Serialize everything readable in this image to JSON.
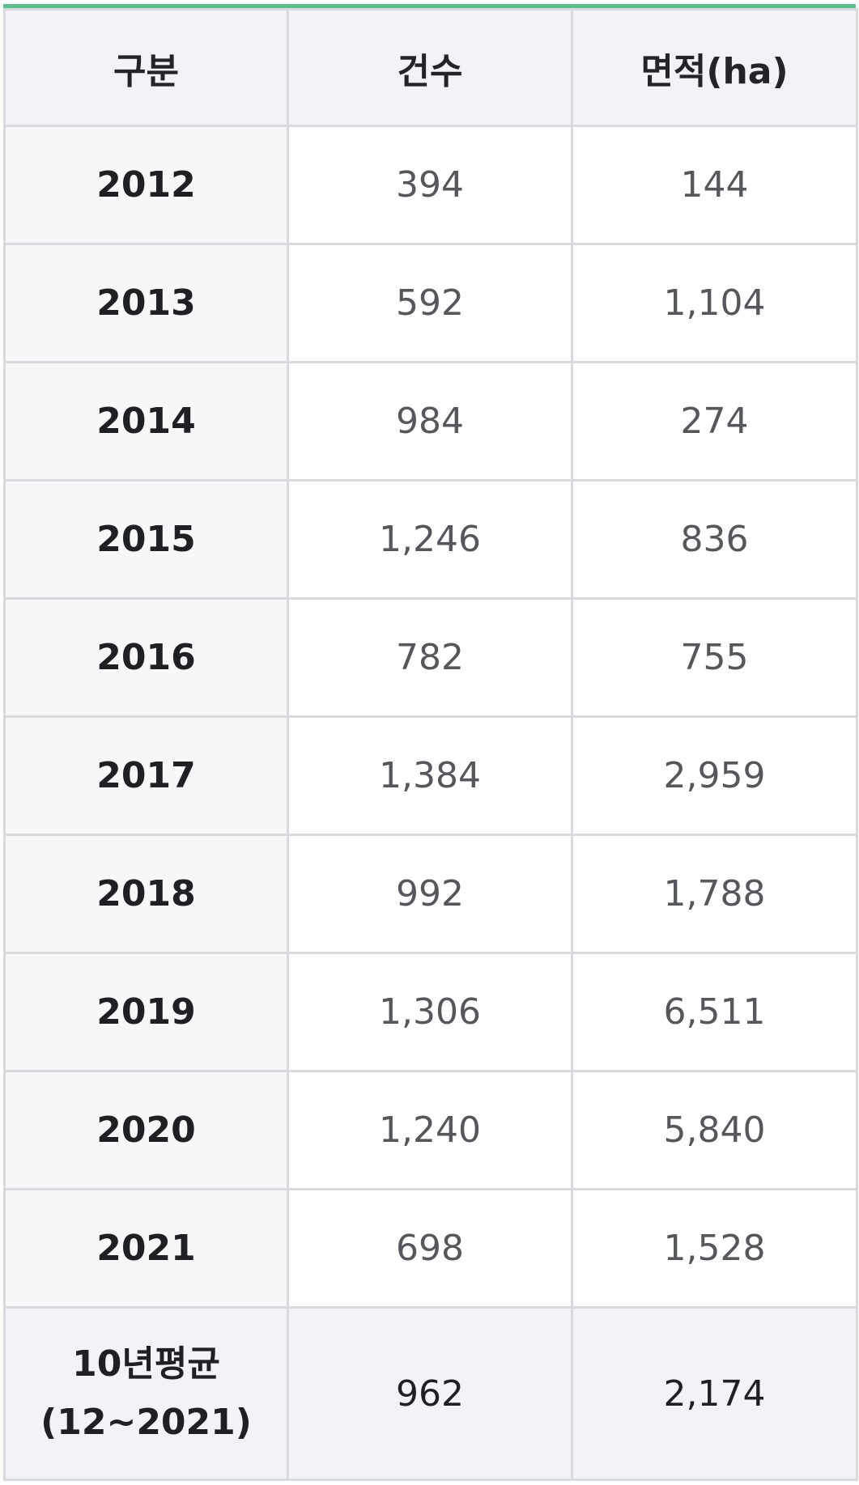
{
  "table": {
    "headers": [
      "구분",
      "건수",
      "면적(ha)"
    ],
    "rows": [
      {
        "year": "2012",
        "count": "394",
        "area": "144"
      },
      {
        "year": "2013",
        "count": "592",
        "area": "1,104"
      },
      {
        "year": "2014",
        "count": "984",
        "area": "274"
      },
      {
        "year": "2015",
        "count": "1,246",
        "area": "836"
      },
      {
        "year": "2016",
        "count": "782",
        "area": "755"
      },
      {
        "year": "2017",
        "count": "1,384",
        "area": "2,959"
      },
      {
        "year": "2018",
        "count": "992",
        "area": "1,788"
      },
      {
        "year": "2019",
        "count": "1,306",
        "area": "6,511"
      },
      {
        "year": "2020",
        "count": "1,240",
        "area": "5,840"
      },
      {
        "year": "2021",
        "count": "698",
        "area": "1,528"
      }
    ],
    "summary": {
      "label_line1": "10년평균",
      "label_line2": "(12~2021)",
      "count": "962",
      "area": "2,174"
    },
    "accent_color": "#5cc08a"
  }
}
